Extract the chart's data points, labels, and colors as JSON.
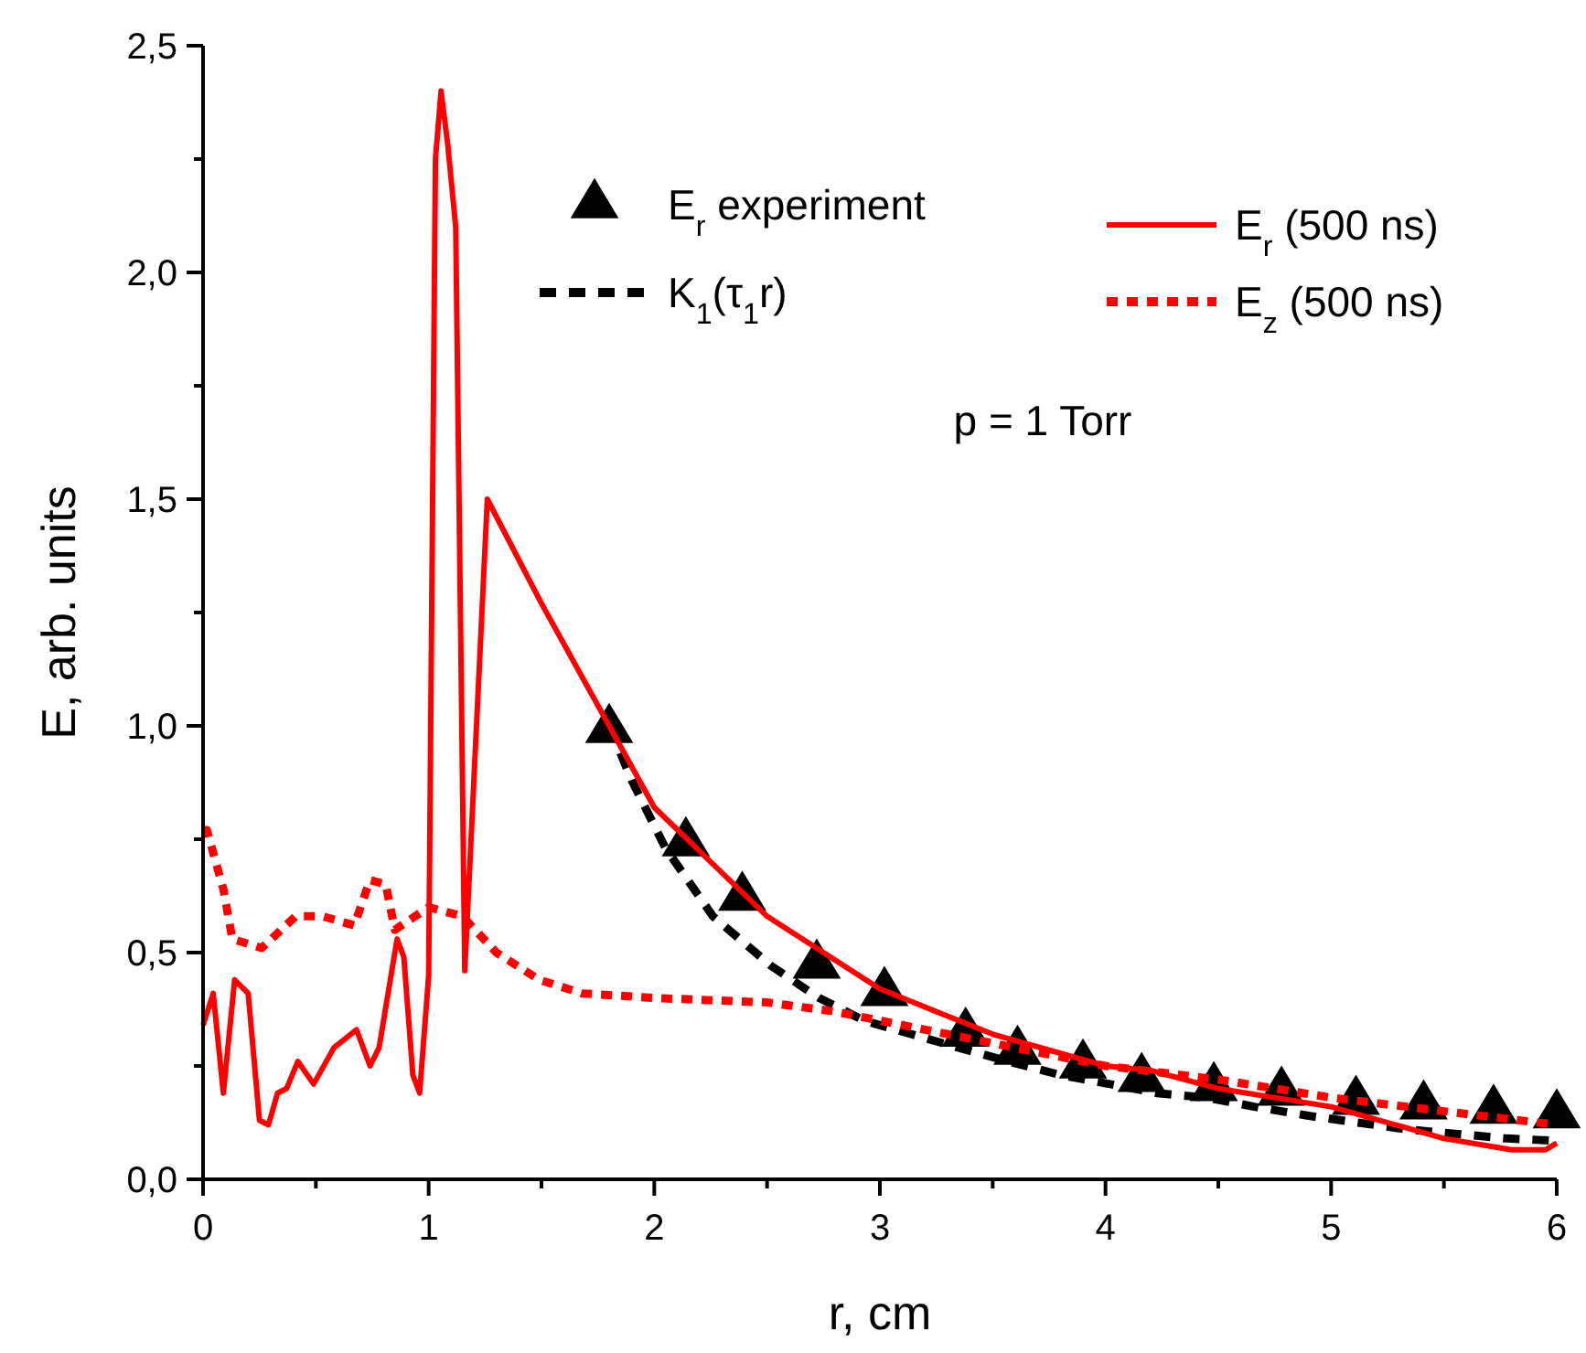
{
  "chart_data": {
    "type": "line",
    "xlabel": "r, cm",
    "ylabel": "E, arb. units",
    "legend": "top right",
    "annotations": [
      "p = 1 Torr"
    ],
    "xlim": [
      0,
      6
    ],
    "ylim": [
      0,
      2.5
    ],
    "xticks": [
      0,
      {
        "value": 0.5,
        "label": null
      },
      1,
      {
        "value": 1.5,
        "label": null
      },
      2,
      {
        "value": 2.5,
        "label": null
      },
      3,
      {
        "value": 3.5,
        "label": null
      },
      4,
      {
        "value": 4.5,
        "label": null
      },
      5,
      {
        "value": 5.5,
        "label": null
      },
      6
    ],
    "yticks": [
      {
        "value": 0,
        "label": "0,0"
      },
      {
        "value": 0.25,
        "label": null
      },
      {
        "value": 0.5,
        "label": "0,5"
      },
      {
        "value": 0.75,
        "label": null
      },
      {
        "value": 1,
        "label": "1,0"
      },
      {
        "value": 1.25,
        "label": null
      },
      {
        "value": 1.5,
        "label": "1,5"
      },
      {
        "value": 1.75,
        "label": null
      },
      {
        "value": 2,
        "label": "2,0"
      },
      {
        "value": 2.25,
        "label": null
      },
      {
        "value": 2.5,
        "label": "2,5"
      }
    ],
    "series": [
      {
        "name": "E$_{r}$ experiment",
        "type": "scatter",
        "marker": "triangle",
        "color": "#000000",
        "x": [
          1.8,
          2.14,
          2.39,
          2.72,
          3.02,
          3.38,
          3.61,
          3.9,
          4.16,
          4.48,
          4.78,
          5.11,
          5.41,
          5.72,
          6.0
        ],
        "values": [
          1.0,
          0.75,
          0.63,
          0.48,
          0.42,
          0.33,
          0.29,
          0.26,
          0.23,
          0.21,
          0.2,
          0.18,
          0.17,
          0.16,
          0.15
        ]
      },
      {
        "name": "K$_{1}$(τ$_{1}$r)",
        "line_style": "dashed",
        "color": "#000000",
        "x": [
          1.8,
          1.9,
          2.05,
          2.26,
          2.52,
          2.73,
          2.93,
          3.14,
          3.35,
          3.57,
          3.8,
          4.02,
          4.23,
          4.45,
          4.66,
          4.9,
          5.12,
          5.34,
          5.56,
          5.78,
          6.0
        ],
        "values": [
          1.0,
          0.88,
          0.73,
          0.58,
          0.47,
          0.4,
          0.35,
          0.32,
          0.29,
          0.26,
          0.23,
          0.21,
          0.19,
          0.18,
          0.16,
          0.14,
          0.125,
          0.11,
          0.1,
          0.09,
          0.085
        ]
      },
      {
        "name": "E$_{r}$ (500 ns)",
        "line_style": "solid",
        "color": "#ff0000",
        "x": [
          0,
          0.045,
          0.09,
          0.14,
          0.2,
          0.25,
          0.29,
          0.33,
          0.37,
          0.42,
          0.49,
          0.58,
          0.68,
          0.74,
          0.78,
          0.86,
          0.89,
          0.93,
          0.96,
          1.0,
          1.03,
          1.055,
          1.085,
          1.12,
          1.16,
          1.26,
          1.5,
          1.8,
          2.0,
          2.5,
          3.0,
          3.5,
          4.0,
          4.2,
          4.5,
          5.0,
          5.5,
          5.8,
          5.95,
          6.0
        ],
        "values": [
          0.34,
          0.41,
          0.19,
          0.44,
          0.41,
          0.13,
          0.12,
          0.19,
          0.2,
          0.26,
          0.21,
          0.29,
          0.33,
          0.25,
          0.29,
          0.53,
          0.49,
          0.23,
          0.19,
          0.45,
          2.25,
          2.4,
          2.28,
          2.1,
          0.46,
          1.5,
          1.27,
          1.0,
          0.82,
          0.58,
          0.42,
          0.32,
          0.25,
          0.24,
          0.2,
          0.16,
          0.09,
          0.065,
          0.065,
          0.08
        ]
      },
      {
        "name": "E$_{z}$ (500 ns)",
        "line_style": "dotted",
        "color": "#ff0000",
        "x": [
          0,
          0.017,
          0.09,
          0.13,
          0.26,
          0.41,
          0.53,
          0.67,
          0.74,
          0.81,
          0.85,
          1.0,
          1.15,
          1.3,
          1.49,
          1.68,
          2.0,
          2.5,
          2.8,
          3.0,
          3.5,
          4.0,
          4.5,
          5.0,
          5.5,
          6.0
        ],
        "values": [
          0.77,
          0.77,
          0.64,
          0.53,
          0.51,
          0.58,
          0.58,
          0.56,
          0.66,
          0.65,
          0.55,
          0.6,
          0.58,
          0.5,
          0.44,
          0.41,
          0.4,
          0.39,
          0.37,
          0.35,
          0.3,
          0.25,
          0.22,
          0.18,
          0.15,
          0.12
        ]
      }
    ]
  }
}
